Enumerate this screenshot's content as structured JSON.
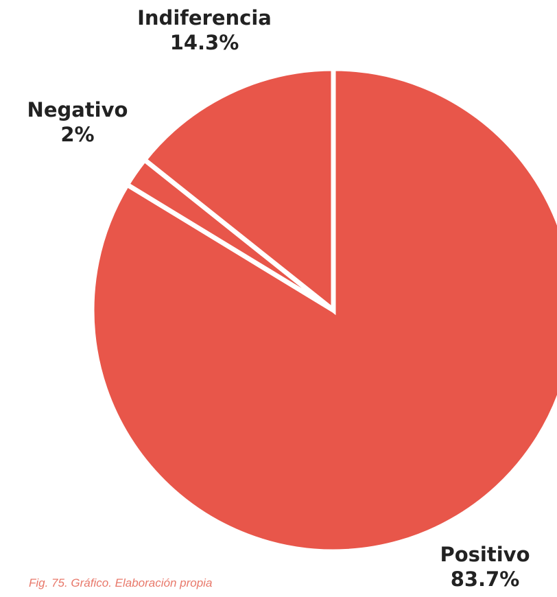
{
  "chart_data": {
    "type": "pie",
    "title": "",
    "slices": [
      {
        "name": "Positivo",
        "value": 83.7,
        "label": "83.7%"
      },
      {
        "name": "Negativo",
        "value": 2,
        "label": "2%"
      },
      {
        "name": "Indiferencia",
        "value": 14.3,
        "label": "14.3%"
      }
    ],
    "slice_color": "#e8564a",
    "separator_color": "#ffffff",
    "start": "12 o'clock",
    "direction": "clockwise"
  },
  "caption": "Fig. 75. Gráfico. Elaboración propia"
}
